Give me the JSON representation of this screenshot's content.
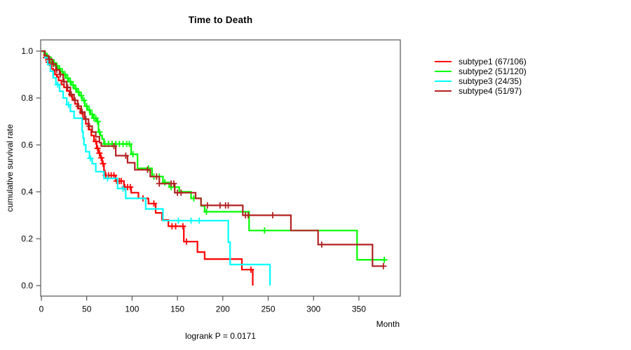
{
  "chart_data": {
    "type": "line",
    "subtype_plot": "kaplan-meier-step",
    "title": "Time to Death",
    "xlabel": "Month",
    "ylabel": "cumulative survival rate",
    "annotation": "logrank P = 0.0171",
    "x_ticks": [
      0,
      50,
      100,
      150,
      200,
      250,
      300,
      350
    ],
    "y_ticks": [
      "0.0",
      "0.2",
      "0.4",
      "0.6",
      "0.8",
      "1.0"
    ],
    "xlim": [
      0,
      394
    ],
    "ylim": [
      0,
      1
    ],
    "grid": false,
    "legend_position": "right-outside",
    "axis_color": "#555555",
    "series": [
      {
        "name": "subtype1",
        "label": "subtype1 (67/106)",
        "color": "#FF0000",
        "events": 67,
        "n": 106,
        "start": [
          0,
          1.0
        ],
        "end_month": 233,
        "steps": [
          [
            3,
            0.981
          ],
          [
            5,
            0.972
          ],
          [
            7,
            0.953
          ],
          [
            9,
            0.94
          ],
          [
            11,
            0.925
          ],
          [
            13,
            0.915
          ],
          [
            15,
            0.9
          ],
          [
            17,
            0.89
          ],
          [
            19,
            0.875
          ],
          [
            22,
            0.858
          ],
          [
            25,
            0.845
          ],
          [
            28,
            0.83
          ],
          [
            31,
            0.81
          ],
          [
            34,
            0.795
          ],
          [
            37,
            0.775
          ],
          [
            40,
            0.755
          ],
          [
            43,
            0.735
          ],
          [
            46,
            0.71
          ],
          [
            49,
            0.69
          ],
          [
            52,
            0.665
          ],
          [
            55,
            0.64
          ],
          [
            58,
            0.615
          ],
          [
            61,
            0.585
          ],
          [
            63,
            0.565
          ],
          [
            65,
            0.545
          ],
          [
            67,
            0.52
          ],
          [
            69,
            0.49
          ],
          [
            70,
            0.47
          ],
          [
            82,
            0.446
          ],
          [
            91,
            0.42
          ],
          [
            99,
            0.396
          ],
          [
            107,
            0.372
          ],
          [
            118,
            0.35
          ],
          [
            126,
            0.31
          ],
          [
            133,
            0.28
          ],
          [
            140,
            0.253
          ],
          [
            157,
            0.1875
          ],
          [
            172,
            0.143
          ],
          [
            180,
            0.113
          ],
          [
            221,
            0.068
          ],
          [
            233,
            0.0
          ]
        ],
        "censor_months": [
          5,
          8,
          60,
          62,
          64,
          66,
          68,
          71,
          74,
          77,
          80,
          83,
          86,
          88,
          92,
          95,
          98,
          112,
          124,
          144,
          148,
          156,
          160,
          231
        ]
      },
      {
        "name": "subtype2",
        "label": "subtype2 (51/120)",
        "color": "#00FF00",
        "events": 51,
        "n": 120,
        "start": [
          0,
          1.0
        ],
        "end_month": 380,
        "steps": [
          [
            3,
            0.99
          ],
          [
            6,
            0.975
          ],
          [
            9,
            0.963
          ],
          [
            12,
            0.95
          ],
          [
            15,
            0.938
          ],
          [
            18,
            0.925
          ],
          [
            21,
            0.912
          ],
          [
            24,
            0.9
          ],
          [
            27,
            0.885
          ],
          [
            30,
            0.87
          ],
          [
            33,
            0.855
          ],
          [
            36,
            0.84
          ],
          [
            39,
            0.825
          ],
          [
            42,
            0.81
          ],
          [
            45,
            0.79
          ],
          [
            48,
            0.765
          ],
          [
            51,
            0.748
          ],
          [
            54,
            0.73
          ],
          [
            57,
            0.714
          ],
          [
            61,
            0.7
          ],
          [
            63,
            0.655
          ],
          [
            65,
            0.64
          ],
          [
            67,
            0.625
          ],
          [
            69,
            0.604
          ],
          [
            99,
            0.56
          ],
          [
            106,
            0.5
          ],
          [
            122,
            0.465
          ],
          [
            134,
            0.44
          ],
          [
            141,
            0.42
          ],
          [
            152,
            0.4
          ],
          [
            165,
            0.372
          ],
          [
            176,
            0.34
          ],
          [
            180,
            0.315
          ],
          [
            229,
            0.235
          ],
          [
            348,
            0.11
          ]
        ],
        "censor_months": [
          7,
          11,
          14,
          17,
          20,
          23,
          26,
          29,
          32,
          35,
          38,
          41,
          44,
          47,
          50,
          53,
          56,
          58,
          60,
          62,
          64,
          70,
          74,
          78,
          82,
          86,
          90,
          94,
          97,
          101,
          118,
          124,
          127,
          130,
          136,
          143,
          147,
          168,
          182,
          246,
          378
        ]
      },
      {
        "name": "subtype3",
        "label": "subtype3 (24/35)",
        "color": "#00FFFF",
        "events": 24,
        "n": 35,
        "start": [
          0,
          1.0
        ],
        "end_month": 252,
        "steps": [
          [
            4,
            0.971
          ],
          [
            7,
            0.943
          ],
          [
            10,
            0.914
          ],
          [
            13,
            0.886
          ],
          [
            16,
            0.857
          ],
          [
            20,
            0.829
          ],
          [
            24,
            0.8
          ],
          [
            28,
            0.771
          ],
          [
            32,
            0.743
          ],
          [
            36,
            0.714
          ],
          [
            45,
            0.657
          ],
          [
            46,
            0.629
          ],
          [
            47,
            0.6
          ],
          [
            49,
            0.571
          ],
          [
            53,
            0.543
          ],
          [
            56,
            0.52
          ],
          [
            60,
            0.486
          ],
          [
            69,
            0.457
          ],
          [
            84,
            0.414
          ],
          [
            93,
            0.372
          ],
          [
            115,
            0.327
          ],
          [
            134,
            0.277
          ],
          [
            206,
            0.185
          ],
          [
            208,
            0.09
          ],
          [
            252,
            0.0
          ]
        ],
        "censor_months": [
          18,
          30,
          54,
          73,
          90,
          151,
          165,
          174
        ]
      },
      {
        "name": "subtype4",
        "label": "subtype4 (51/97)",
        "color": "#B22222",
        "events": 51,
        "n": 97,
        "start": [
          0,
          1.0
        ],
        "end_month": 377,
        "steps": [
          [
            4,
            0.98
          ],
          [
            8,
            0.965
          ],
          [
            12,
            0.945
          ],
          [
            16,
            0.92
          ],
          [
            20,
            0.9
          ],
          [
            24,
            0.87
          ],
          [
            28,
            0.845
          ],
          [
            32,
            0.815
          ],
          [
            36,
            0.79
          ],
          [
            40,
            0.765
          ],
          [
            44,
            0.74
          ],
          [
            48,
            0.71
          ],
          [
            52,
            0.68
          ],
          [
            56,
            0.655
          ],
          [
            60,
            0.635
          ],
          [
            64,
            0.61
          ],
          [
            66,
            0.595
          ],
          [
            82,
            0.554
          ],
          [
            95,
            0.524
          ],
          [
            103,
            0.494
          ],
          [
            120,
            0.465
          ],
          [
            130,
            0.435
          ],
          [
            147,
            0.396
          ],
          [
            170,
            0.372
          ],
          [
            176,
            0.342
          ],
          [
            222,
            0.3
          ],
          [
            275,
            0.235
          ],
          [
            305,
            0.175
          ],
          [
            365,
            0.083
          ]
        ],
        "censor_months": [
          9,
          13,
          17,
          21,
          25,
          29,
          33,
          37,
          41,
          45,
          49,
          53,
          80,
          93,
          117,
          127,
          130,
          143,
          146,
          150,
          154,
          183,
          197,
          203,
          206,
          225,
          228,
          255,
          309,
          377
        ]
      }
    ]
  }
}
